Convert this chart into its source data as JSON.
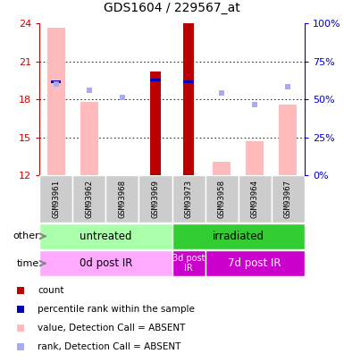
{
  "title": "GDS1604 / 229567_at",
  "samples": [
    "GSM93961",
    "GSM93962",
    "GSM93968",
    "GSM93969",
    "GSM93973",
    "GSM93958",
    "GSM93964",
    "GSM93967"
  ],
  "ylim_left": [
    12,
    24
  ],
  "ylim_right": [
    0,
    100
  ],
  "yticks_left": [
    12,
    15,
    18,
    21,
    24
  ],
  "yticks_right": [
    0,
    25,
    50,
    75,
    100
  ],
  "count_values": [
    null,
    null,
    null,
    20.2,
    24.0,
    null,
    null,
    null
  ],
  "rank_values": [
    19.3,
    null,
    null,
    19.45,
    19.3,
    null,
    null,
    null
  ],
  "absent_value_bars": [
    23.7,
    17.8,
    null,
    null,
    null,
    13.1,
    14.7,
    17.6
  ],
  "absent_rank_dots": [
    19.2,
    18.7,
    18.2,
    null,
    null,
    18.5,
    17.6,
    19.0
  ],
  "group_other": [
    {
      "label": "untreated",
      "start": 0,
      "end": 4,
      "color": "#aaffaa"
    },
    {
      "label": "irradiated",
      "start": 4,
      "end": 8,
      "color": "#33cc33"
    }
  ],
  "group_time": [
    {
      "label": "0d post IR",
      "start": 0,
      "end": 4,
      "color": "#ffaaff"
    },
    {
      "label": "3d post\nIR",
      "start": 4,
      "end": 5,
      "color": "#cc00cc"
    },
    {
      "label": "7d post IR",
      "start": 5,
      "end": 8,
      "color": "#cc00cc"
    }
  ],
  "label_color_left": "#cc0000",
  "label_color_right": "#0000cc",
  "absent_bar_color": "#ffbbbb",
  "absent_rank_color": "#aaaaee",
  "count_bar_color": "#bb0000",
  "rank_bar_color": "#0000bb",
  "sample_bg_color": "#cccccc",
  "legend_items": [
    {
      "color": "#bb0000",
      "label": "count"
    },
    {
      "color": "#0000bb",
      "label": "percentile rank within the sample"
    },
    {
      "color": "#ffbbbb",
      "label": "value, Detection Call = ABSENT"
    },
    {
      "color": "#aaaaee",
      "label": "rank, Detection Call = ABSENT"
    }
  ]
}
